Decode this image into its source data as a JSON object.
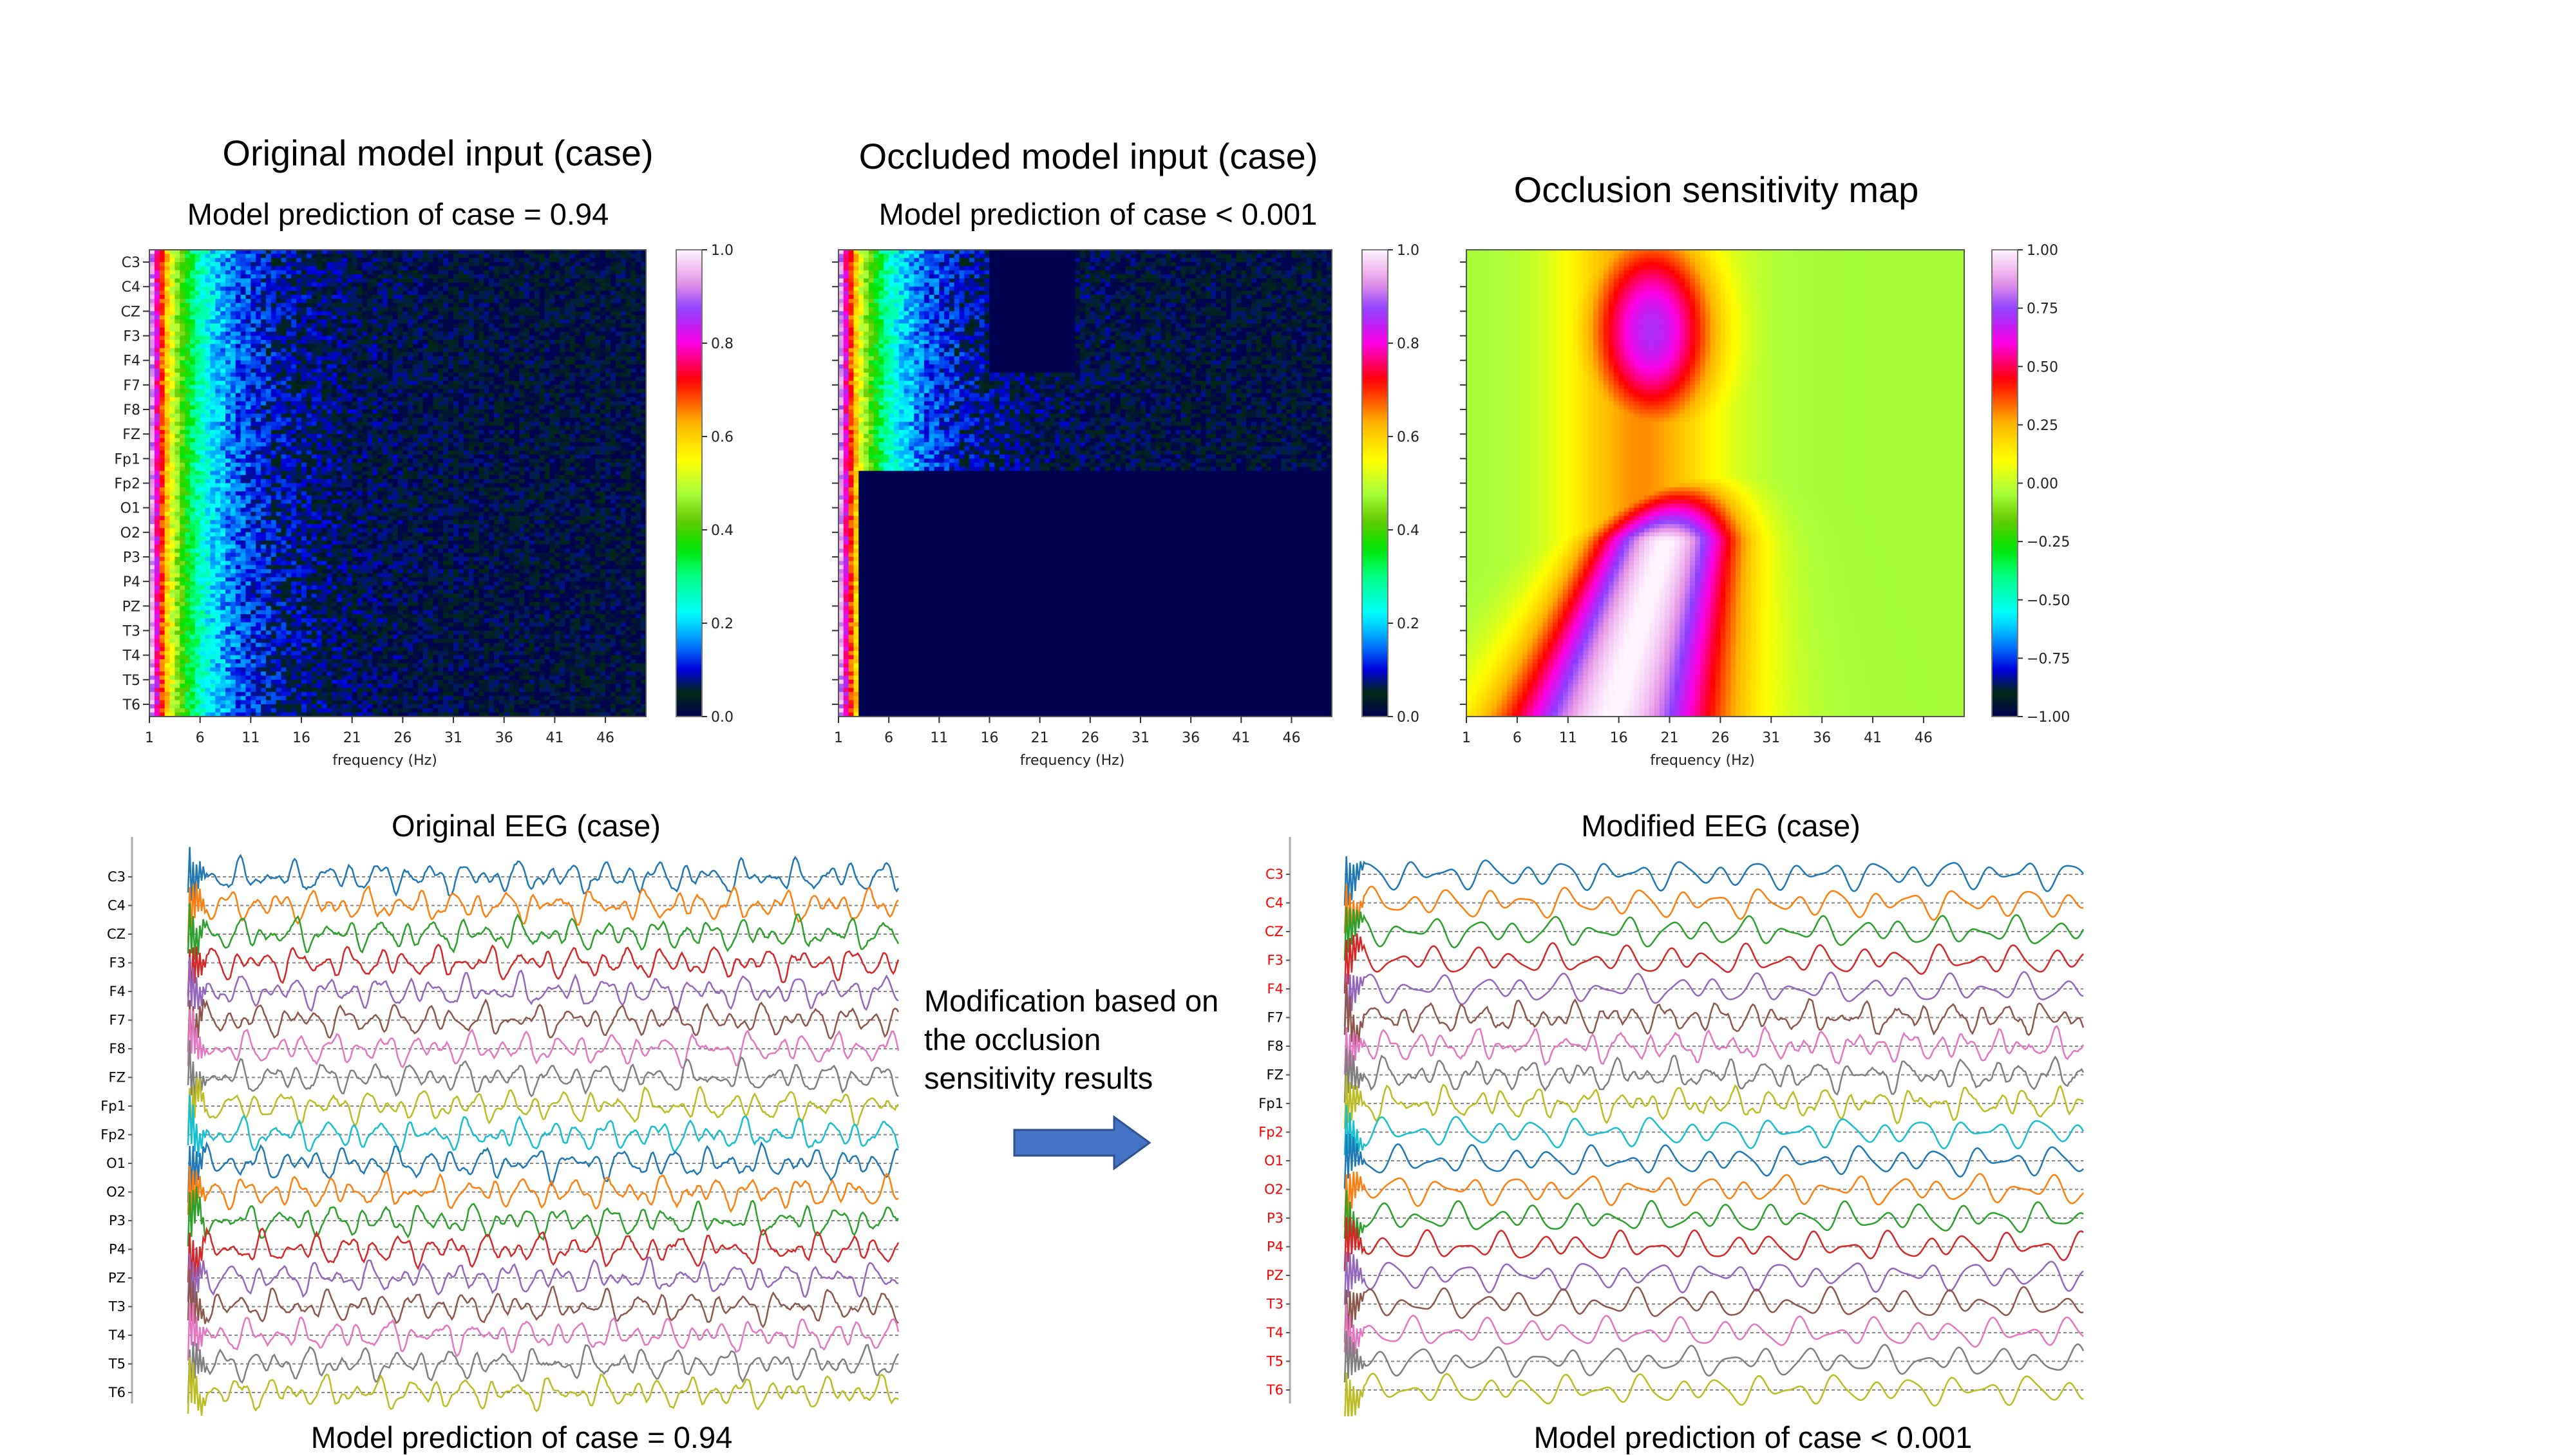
{
  "panels": {
    "original_input": {
      "title": "Original model input (case)",
      "subtitle": "Model prediction of case = 0.94"
    },
    "occluded_input": {
      "title": "Occluded model input (case)",
      "subtitle": "Model prediction of case < 0.001"
    },
    "sensitivity_map": {
      "title": "Occlusion sensitivity map"
    },
    "original_eeg": {
      "title": "Original EEG (case)",
      "caption": "Model prediction of case = 0.94"
    },
    "modified_eeg": {
      "title": "Modified EEG (case)",
      "caption": "Model prediction of case < 0.001"
    }
  },
  "middle": {
    "text": "Modification based on\nthe occlusion\nsensitivity results",
    "arrow_icon": "right-arrow-icon"
  },
  "colors": {
    "arrow_fill": "#4472c4",
    "arrow_stroke": "#2f528f",
    "modified_channel_label": "#ff0000",
    "unmodified_channel_label": "#000000"
  },
  "chart_data": [
    {
      "type": "heatmap",
      "name": "original_input_spectrogram",
      "xlabel": "frequency (Hz)",
      "ylabel": "",
      "x_ticks": [
        1,
        6,
        11,
        16,
        21,
        26,
        31,
        36,
        41,
        46
      ],
      "x_range": [
        1,
        50
      ],
      "y_categories": [
        "C3",
        "C4",
        "CZ",
        "F3",
        "F4",
        "F7",
        "F8",
        "FZ",
        "Fp1",
        "Fp2",
        "O1",
        "O2",
        "P3",
        "P4",
        "PZ",
        "T3",
        "T4",
        "T5",
        "T6"
      ],
      "colorbar": {
        "range": [
          0.0,
          1.0
        ],
        "ticks": [
          "0.0",
          "0.2",
          "0.4",
          "0.6",
          "0.8",
          "1.0"
        ],
        "colormap": "gist_ncar"
      },
      "description": "High power (0.4-0.8) at 1-5 Hz across all channels, decaying to near 0 above ~12 Hz"
    },
    {
      "type": "heatmap",
      "name": "occluded_input_spectrogram",
      "xlabel": "frequency (Hz)",
      "ylabel": "",
      "x_ticks": [
        1,
        6,
        11,
        16,
        21,
        26,
        31,
        36,
        41,
        46
      ],
      "x_range": [
        1,
        50
      ],
      "y_categories": [
        "C3",
        "C4",
        "CZ",
        "F3",
        "F4",
        "F7",
        "F8",
        "FZ",
        "Fp1",
        "Fp2",
        "O1",
        "O2",
        "P3",
        "P4",
        "PZ",
        "T3",
        "T4",
        "T5",
        "T6"
      ],
      "colorbar": {
        "range": [
          0.0,
          1.0
        ],
        "ticks": [
          "0.0",
          "0.2",
          "0.4",
          "0.6",
          "0.8",
          "1.0"
        ],
        "colormap": "gist_ncar"
      },
      "occluded_regions": [
        {
          "channels": [
            "C3",
            "C4",
            "CZ",
            "F3",
            "F4"
          ],
          "freq_range_hz": [
            16,
            24
          ]
        },
        {
          "channels": [
            "Fp2",
            "O1",
            "O2",
            "P3",
            "P4",
            "PZ",
            "T3",
            "T4",
            "T5",
            "T6"
          ],
          "freq_range_hz": [
            3,
            50
          ]
        }
      ]
    },
    {
      "type": "heatmap",
      "name": "occlusion_sensitivity_map",
      "xlabel": "frequency (Hz)",
      "ylabel": "",
      "x_ticks": [
        1,
        6,
        11,
        16,
        21,
        26,
        31,
        36,
        41,
        46
      ],
      "x_range": [
        1,
        50
      ],
      "y_tick_count": 19,
      "colorbar": {
        "range": [
          -1.0,
          1.0
        ],
        "ticks": [
          "1.00",
          "0.75",
          "0.50",
          "0.25",
          "0.00",
          "−0.25",
          "−0.50",
          "−0.75",
          "−1.00"
        ],
        "colormap": "gist_ncar"
      },
      "description": "Upper hotspot ~0.6 around 16-22 Hz (channels C3-F4); lower hotspot up to ~1.0 spanning 3-24 Hz (channels Fp2-T6); background ~ -0.05"
    },
    {
      "type": "line",
      "name": "original_eeg",
      "channels": [
        "C3",
        "C4",
        "CZ",
        "F3",
        "F4",
        "F7",
        "F8",
        "FZ",
        "Fp1",
        "Fp2",
        "O1",
        "O2",
        "P3",
        "P4",
        "PZ",
        "T3",
        "T4",
        "T5",
        "T6"
      ],
      "series_colors": [
        "#1f77b4",
        "#ff7f0e",
        "#2ca02c",
        "#d62728",
        "#9467bd",
        "#8c564b",
        "#e377c2",
        "#7f7f7f",
        "#bcbd22",
        "#17becf",
        "#1f77b4",
        "#ff7f0e",
        "#2ca02c",
        "#d62728",
        "#9467bd",
        "#8c564b",
        "#e377c2",
        "#7f7f7f",
        "#bcbd22"
      ],
      "modified_channels": []
    },
    {
      "type": "line",
      "name": "modified_eeg",
      "channels": [
        "C3",
        "C4",
        "CZ",
        "F3",
        "F4",
        "F7",
        "F8",
        "FZ",
        "Fp1",
        "Fp2",
        "O1",
        "O2",
        "P3",
        "P4",
        "PZ",
        "T3",
        "T4",
        "T5",
        "T6"
      ],
      "series_colors": [
        "#1f77b4",
        "#ff7f0e",
        "#2ca02c",
        "#d62728",
        "#9467bd",
        "#8c564b",
        "#e377c2",
        "#7f7f7f",
        "#bcbd22",
        "#17becf",
        "#1f77b4",
        "#ff7f0e",
        "#2ca02c",
        "#d62728",
        "#9467bd",
        "#8c564b",
        "#e377c2",
        "#7f7f7f",
        "#bcbd22"
      ],
      "modified_channels": [
        "C3",
        "C4",
        "CZ",
        "F3",
        "F4",
        "Fp2",
        "O1",
        "O2",
        "P3",
        "P4",
        "PZ",
        "T3",
        "T4",
        "T5",
        "T6"
      ]
    }
  ]
}
